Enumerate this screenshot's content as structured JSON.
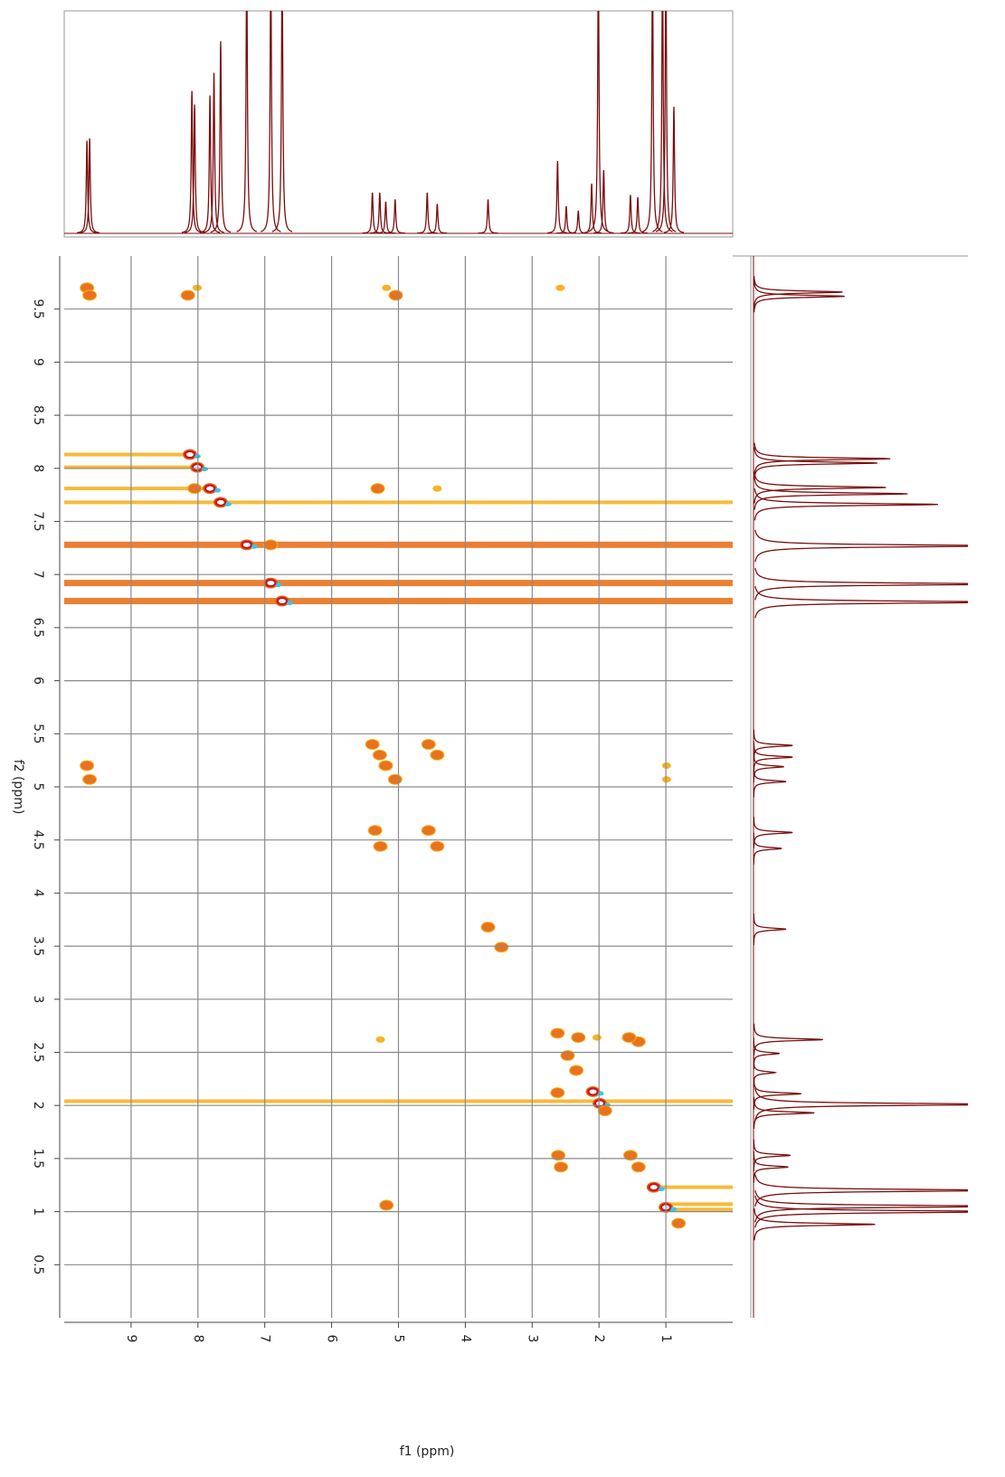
{
  "chart_data": {
    "type": "nmr2d",
    "x_label": "f1 (ppm)",
    "y_label": "f2 (ppm)",
    "xlim": [
      10,
      0
    ],
    "ylim": [
      0,
      10
    ],
    "xticks": [
      9,
      8,
      7,
      6,
      5,
      4,
      3,
      2,
      1
    ],
    "yticks": [
      0.5,
      1,
      1.5,
      2,
      2.5,
      3,
      3.5,
      4,
      4.5,
      5,
      5.5,
      6,
      6.5,
      7,
      7.5,
      8,
      8.5,
      9,
      9.5
    ],
    "grid": true,
    "level_colors": [
      "#f6b323",
      "#e9721d",
      "#d9401a"
    ],
    "projection_color": "#7a0e0e",
    "projection": {
      "positions": [
        9.66,
        9.62,
        8.09,
        8.05,
        7.82,
        7.76,
        7.66,
        7.27,
        6.91,
        6.74,
        5.39,
        5.28,
        5.19,
        5.05,
        4.57,
        4.42,
        3.66,
        2.62,
        2.49,
        2.31,
        2.11,
        2.01,
        1.93,
        1.53,
        1.42,
        1.2,
        1.05,
        1.0,
        0.88
      ],
      "heights": [
        0.41,
        0.42,
        0.63,
        0.57,
        0.61,
        0.71,
        0.85,
        1.2,
        1.2,
        1.2,
        0.18,
        0.18,
        0.14,
        0.15,
        0.18,
        0.13,
        0.15,
        0.32,
        0.12,
        0.1,
        0.22,
        1.2,
        0.28,
        0.17,
        0.16,
        1.2,
        1.2,
        1.2,
        0.56
      ]
    },
    "peaks": {
      "x": [
        9.66,
        9.62,
        8.12,
        8.01,
        7.82,
        7.66,
        7.27,
        6.91,
        6.74,
        5.39,
        5.28,
        5.19,
        5.05,
        4.55,
        4.42,
        3.66,
        3.46,
        2.62,
        2.47,
        2.34,
        2.09,
        1.99,
        1.91,
        1.53,
        1.41,
        1.18,
        1.0,
        0.81,
        9.66,
        9.62,
        8.15,
        8.01,
        5.18,
        5.04,
        5.35,
        5.27,
        4.55,
        4.42,
        8.05,
        5.31,
        4.42,
        6.91,
        2.62,
        2.31,
        2.61,
        2.57,
        1.41,
        1.55,
        2.03,
        5.27,
        5.18,
        0.99,
        0.99,
        2.58
      ],
      "y": [
        9.7,
        9.63,
        8.13,
        8.01,
        7.81,
        7.68,
        7.28,
        6.92,
        6.75,
        5.4,
        5.3,
        5.2,
        5.07,
        4.59,
        4.44,
        3.68,
        3.49,
        2.68,
        2.47,
        2.33,
        2.13,
        2.02,
        1.95,
        1.53,
        1.42,
        1.23,
        1.04,
        0.89,
        5.2,
        5.07,
        9.63,
        9.7,
        9.7,
        9.63,
        4.59,
        4.44,
        5.4,
        5.3,
        7.81,
        7.81,
        7.81,
        7.28,
        2.12,
        2.64,
        1.53,
        1.42,
        2.6,
        2.64,
        2.64,
        2.62,
        1.06,
        5.2,
        5.07,
        9.7
      ],
      "intensity": [
        2,
        2,
        3,
        3,
        3,
        3,
        3,
        3,
        3,
        2,
        2,
        2,
        2,
        2,
        2,
        2,
        2,
        2,
        2,
        2,
        3,
        3,
        2,
        2,
        2,
        3,
        3,
        2,
        2,
        2,
        2,
        1,
        1,
        2,
        2,
        2,
        2,
        2,
        2,
        2,
        1,
        2,
        2,
        2,
        2,
        2,
        2,
        2,
        1,
        1,
        2,
        1,
        1,
        1
      ]
    },
    "streaks": {
      "y": [
        7.28,
        6.92,
        6.75,
        7.68,
        7.81,
        8.01,
        8.13,
        2.04,
        1.23,
        1.07,
        1.02
      ],
      "x_from": [
        10,
        10,
        10,
        10,
        10,
        10,
        10,
        10,
        1.2,
        1.0,
        1.0
      ],
      "x_to": [
        0,
        0,
        0,
        0,
        7.8,
        8.0,
        8.1,
        0,
        0,
        0,
        0
      ],
      "intensity": [
        2,
        2,
        2,
        1,
        1,
        1,
        1,
        1,
        1,
        1,
        1
      ]
    }
  }
}
